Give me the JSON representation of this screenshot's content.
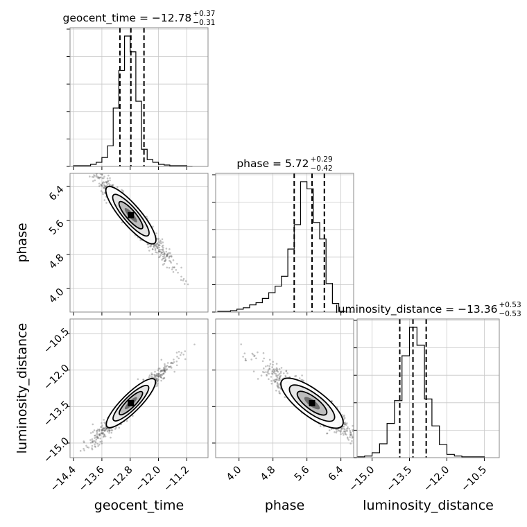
{
  "chart_data": {
    "type": "corner",
    "parameters": [
      "geocent_time",
      "phase",
      "luminosity_distance"
    ],
    "axis_labels": {
      "geocent_time": "geocent_time",
      "phase": "phase",
      "luminosity_distance": "luminosity_distance"
    },
    "ranges": {
      "geocent_time": [
        -14.5,
        -10.6
      ],
      "phase": [
        3.45,
        6.7
      ],
      "luminosity_distance": [
        -15.6,
        -9.9
      ]
    },
    "ticks": {
      "geocent_time": {
        "values": [
          -14.4,
          -13.6,
          -12.8,
          -12.0,
          -11.2
        ],
        "labels": [
          "−14.4",
          "−13.6",
          "−12.8",
          "−12.0",
          "−11.2"
        ]
      },
      "phase": {
        "values": [
          4.0,
          4.8,
          5.6,
          6.4
        ],
        "labels": [
          "4.0",
          "4.8",
          "5.6",
          "6.4"
        ]
      },
      "luminosity_distance": {
        "values": [
          -15.0,
          -13.5,
          -12.0,
          -10.5
        ],
        "labels": [
          "−15.0",
          "−13.5",
          "−12.0",
          "−10.5"
        ]
      }
    },
    "titles": [
      {
        "param": "geocent_time",
        "label": "geocent_time",
        "median": "−12.78",
        "plus": "+0.37",
        "minus": "−0.31"
      },
      {
        "param": "phase",
        "label": "phase",
        "median": "5.72",
        "plus": "+0.29",
        "minus": "−0.42"
      },
      {
        "param": "luminosity_distance",
        "label": "luminosity_distance",
        "median": "−13.36",
        "plus": "+0.53",
        "minus": "−0.53"
      }
    ],
    "quantiles": {
      "geocent_time": [
        -13.09,
        -12.78,
        -12.41
      ],
      "phase": [
        5.3,
        5.72,
        6.01
      ],
      "luminosity_distance": [
        -13.89,
        -13.36,
        -12.83
      ]
    },
    "histograms": {
      "geocent_time": {
        "edges": [
          -14.4,
          -14.24,
          -14.08,
          -13.92,
          -13.76,
          -13.6,
          -13.44,
          -13.28,
          -13.12,
          -12.96,
          -12.8,
          -12.64,
          -12.48,
          -12.32,
          -12.16,
          -12.0,
          -11.84,
          -11.68,
          -11.52,
          -11.36,
          -11.2,
          -11.04
        ],
        "counts": [
          1,
          1,
          1,
          3,
          6,
          13,
          30,
          85,
          140,
          190,
          167,
          95,
          25,
          10,
          6,
          3,
          2,
          1,
          1,
          1,
          0
        ]
      },
      "phase": {
        "edges": [
          3.5,
          3.65,
          3.8,
          3.95,
          4.1,
          4.25,
          4.4,
          4.55,
          4.7,
          4.85,
          5.0,
          5.15,
          5.3,
          5.45,
          5.6,
          5.75,
          5.9,
          6.05,
          6.2,
          6.35,
          6.5
        ],
        "counts": [
          1,
          1,
          2,
          4,
          6,
          10,
          13,
          19,
          27,
          36,
          50,
          88,
          122,
          182,
          172,
          125,
          102,
          40,
          12,
          1
        ]
      },
      "luminosity_distance": {
        "edges": [
          -15.6,
          -15.3,
          -15.0,
          -14.7,
          -14.4,
          -14.1,
          -13.8,
          -13.5,
          -13.2,
          -12.9,
          -12.6,
          -12.3,
          -12.0,
          -11.7,
          -11.4,
          -11.1,
          -10.8,
          -10.5
        ],
        "counts": [
          1,
          2,
          6,
          17,
          42,
          70,
          125,
          160,
          138,
          72,
          39,
          16,
          4,
          2,
          1,
          1,
          1
        ]
      }
    },
    "correlations": {
      "phase_vs_geocent_time": -0.93,
      "luminosity_distance_vs_geocent_time": 0.93,
      "luminosity_distance_vs_phase": -0.88
    },
    "grid": true,
    "quantile_lines": "dashed"
  }
}
